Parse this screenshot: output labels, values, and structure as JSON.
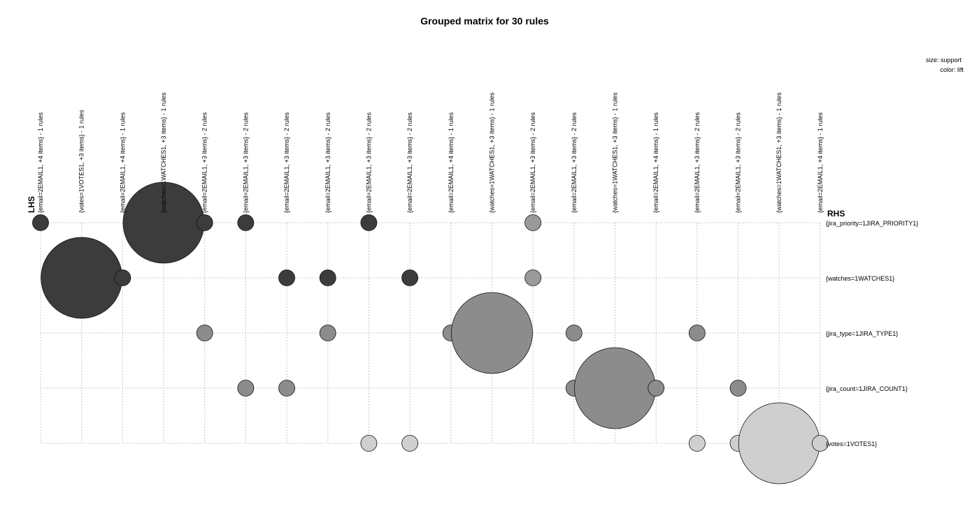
{
  "chart_data": {
    "type": "scatter",
    "subtype": "grouped-matrix",
    "title": "Grouped matrix for 30 rules",
    "legend": {
      "size": "size: support",
      "color": "color: lift",
      "placement": "top-right"
    },
    "lhs_title": "LHS",
    "rhs_title": "RHS",
    "grid": true,
    "lhs_groups": [
      "{email=2EMAIL1, +4 items} - 1 rules",
      "{votes=1VOTES1, +3 items} - 1 rules",
      "{email=2EMAIL1, +4 items} - 1 rules",
      "{watches=1WATCHES1, +3 items} - 1 rules",
      "{email=2EMAIL1, +3 items} - 2 rules",
      "{email=2EMAIL1, +3 items} - 2 rules",
      "{email=2EMAIL1, +3 items} - 2 rules",
      "{email=2EMAIL1, +3 items} - 2 rules",
      "{email=2EMAIL1, +3 items} - 2 rules",
      "{email=2EMAIL1, +3 items} - 2 rules",
      "{email=2EMAIL1, +4 items} - 1 rules",
      "{watches=1WATCHES1, +3 items} - 1 rules",
      "{email=2EMAIL1, +3 items} - 2 rules",
      "{email=2EMAIL1, +3 items} - 2 rules",
      "{watches=1WATCHES1, +3 items} - 1 rules",
      "{email=2EMAIL1, +4 items} - 1 rules",
      "{email=2EMAIL1, +3 items} - 2 rules",
      "{email=2EMAIL1, +3 items} - 2 rules",
      "{watches=1WATCHES1, +3 items} - 1 rules",
      "{email=2EMAIL1, +4 items} - 1 rules"
    ],
    "rhs_items": [
      "{jira_priority=1JIRA_PRIORITY1}",
      "{watches=1WATCHES1}",
      "{jira_type=1JIRA_TYPE1}",
      "{jira_count=1JIRA_COUNT1}",
      "{votes=1VOTES1}"
    ],
    "points": [
      {
        "lhs": 0,
        "rhs": 0,
        "support": 0.03,
        "color": "#3c3c3c"
      },
      {
        "lhs": 3,
        "rhs": 0,
        "support": 1.0,
        "color": "#3c3c3c"
      },
      {
        "lhs": 4,
        "rhs": 0,
        "support": 0.03,
        "color": "#3c3c3c"
      },
      {
        "lhs": 5,
        "rhs": 0,
        "support": 0.03,
        "color": "#3c3c3c"
      },
      {
        "lhs": 8,
        "rhs": 0,
        "support": 0.03,
        "color": "#3c3c3c"
      },
      {
        "lhs": 12,
        "rhs": 0,
        "support": 0.03,
        "color": "#9a9a9a"
      },
      {
        "lhs": 1,
        "rhs": 1,
        "support": 1.0,
        "color": "#3c3c3c"
      },
      {
        "lhs": 2,
        "rhs": 1,
        "support": 0.03,
        "color": "#3c3c3c"
      },
      {
        "lhs": 6,
        "rhs": 1,
        "support": 0.03,
        "color": "#3c3c3c"
      },
      {
        "lhs": 7,
        "rhs": 1,
        "support": 0.03,
        "color": "#3c3c3c"
      },
      {
        "lhs": 9,
        "rhs": 1,
        "support": 0.03,
        "color": "#3c3c3c"
      },
      {
        "lhs": 12,
        "rhs": 1,
        "support": 0.03,
        "color": "#9a9a9a"
      },
      {
        "lhs": 4,
        "rhs": 2,
        "support": 0.03,
        "color": "#8c8c8c"
      },
      {
        "lhs": 7,
        "rhs": 2,
        "support": 0.03,
        "color": "#8c8c8c"
      },
      {
        "lhs": 10,
        "rhs": 2,
        "support": 0.03,
        "color": "#8c8c8c"
      },
      {
        "lhs": 11,
        "rhs": 2,
        "support": 1.0,
        "color": "#8c8c8c"
      },
      {
        "lhs": 13,
        "rhs": 2,
        "support": 0.03,
        "color": "#8c8c8c"
      },
      {
        "lhs": 16,
        "rhs": 2,
        "support": 0.03,
        "color": "#8c8c8c"
      },
      {
        "lhs": 5,
        "rhs": 3,
        "support": 0.03,
        "color": "#8c8c8c"
      },
      {
        "lhs": 6,
        "rhs": 3,
        "support": 0.03,
        "color": "#8c8c8c"
      },
      {
        "lhs": 13,
        "rhs": 3,
        "support": 0.03,
        "color": "#8c8c8c"
      },
      {
        "lhs": 14,
        "rhs": 3,
        "support": 1.0,
        "color": "#8c8c8c"
      },
      {
        "lhs": 15,
        "rhs": 3,
        "support": 0.03,
        "color": "#8c8c8c"
      },
      {
        "lhs": 17,
        "rhs": 3,
        "support": 0.03,
        "color": "#8c8c8c"
      },
      {
        "lhs": 8,
        "rhs": 4,
        "support": 0.03,
        "color": "#cfcfcf"
      },
      {
        "lhs": 9,
        "rhs": 4,
        "support": 0.03,
        "color": "#cfcfcf"
      },
      {
        "lhs": 16,
        "rhs": 4,
        "support": 0.03,
        "color": "#cfcfcf"
      },
      {
        "lhs": 17,
        "rhs": 4,
        "support": 0.03,
        "color": "#cfcfcf"
      },
      {
        "lhs": 18,
        "rhs": 4,
        "support": 1.0,
        "color": "#cfcfcf"
      },
      {
        "lhs": 19,
        "rhs": 4,
        "support": 0.03,
        "color": "#cfcfcf"
      }
    ]
  }
}
